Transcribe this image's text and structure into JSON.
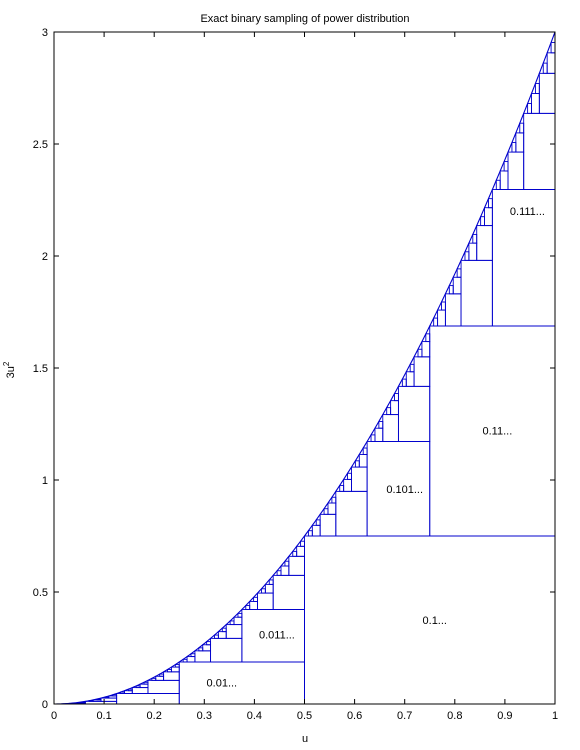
{
  "chart_data": {
    "type": "line",
    "title": "Exact binary sampling of power distribution",
    "xlabel": "u",
    "ylabel": "3u",
    "ylabel_superscript": "2",
    "xlim": [
      0,
      1
    ],
    "ylim": [
      0,
      3
    ],
    "xticks": [
      0,
      0.1,
      0.2,
      0.3,
      0.4,
      0.5,
      0.6,
      0.7,
      0.8,
      0.9,
      1
    ],
    "xtick_labels": [
      "0",
      "0.1",
      "0.2",
      "0.3",
      "0.4",
      "0.5",
      "0.6",
      "0.7",
      "0.8",
      "0.9",
      "1"
    ],
    "yticks": [
      0,
      0.5,
      1,
      1.5,
      2,
      2.5,
      3
    ],
    "ytick_labels": [
      "0",
      "0.5",
      "1",
      "1.5",
      "2",
      "2.5",
      "3"
    ],
    "grid": false,
    "line_color": "#0000cc",
    "series": [
      {
        "function": "3u^2",
        "x_start": 0,
        "x_end": 1
      }
    ],
    "partition": {
      "description": "binary dyadic rectangles under the curve",
      "max_depth": 7
    },
    "annotations": [
      {
        "text": "0.1...",
        "x": 0.76,
        "y": 0.375
      },
      {
        "text": "0.11...",
        "x": 0.885,
        "y": 1.22
      },
      {
        "text": "0.111...",
        "x": 0.945,
        "y": 2.2
      },
      {
        "text": "0.101...",
        "x": 0.7,
        "y": 0.96
      },
      {
        "text": "0.01...",
        "x": 0.335,
        "y": 0.095
      },
      {
        "text": "0.011...",
        "x": 0.445,
        "y": 0.31
      }
    ]
  }
}
